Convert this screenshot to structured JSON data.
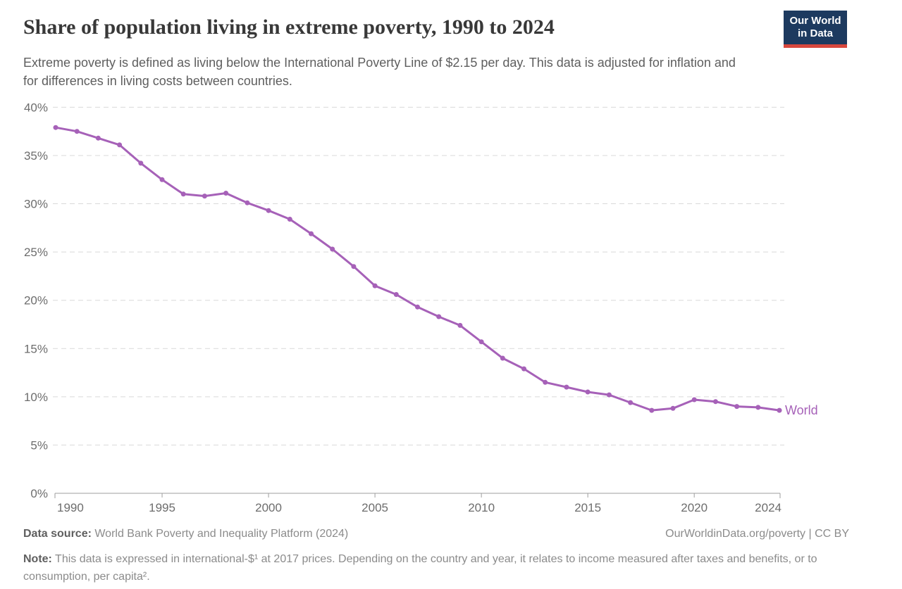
{
  "header": {
    "title": "Share of population living in extreme poverty, 1990 to 2024",
    "subtitle": "Extreme poverty is defined as living below the International Poverty Line of $2.15 per day. This data is adjusted for inflation and for differences in living costs between countries.",
    "logo": {
      "line1": "Our World",
      "line2": "in Data",
      "bg_color": "#1d3a5f",
      "accent_color": "#d8473d"
    }
  },
  "chart_data": {
    "type": "line",
    "title": "Share of population living in extreme poverty, 1990 to 2024",
    "xlabel": "",
    "ylabel": "",
    "xlim": [
      1990,
      2024
    ],
    "ylim": [
      0,
      40
    ],
    "grid": "horizontal-dashed",
    "legend_position": "end-of-line",
    "x_ticks": [
      1990,
      1995,
      2000,
      2005,
      2010,
      2015,
      2020,
      2024
    ],
    "y_ticks": [
      {
        "value": 0,
        "label": "0%"
      },
      {
        "value": 5,
        "label": "5%"
      },
      {
        "value": 10,
        "label": "10%"
      },
      {
        "value": 15,
        "label": "15%"
      },
      {
        "value": 20,
        "label": "20%"
      },
      {
        "value": 25,
        "label": "25%"
      },
      {
        "value": 30,
        "label": "30%"
      },
      {
        "value": 35,
        "label": "35%"
      },
      {
        "value": 40,
        "label": "40%"
      }
    ],
    "series": [
      {
        "name": "World",
        "color": "#a661b8",
        "x": [
          1990,
          1991,
          1992,
          1993,
          1994,
          1995,
          1996,
          1997,
          1998,
          1999,
          2000,
          2001,
          2002,
          2003,
          2004,
          2005,
          2006,
          2007,
          2008,
          2009,
          2010,
          2011,
          2012,
          2013,
          2014,
          2015,
          2016,
          2017,
          2018,
          2019,
          2020,
          2021,
          2022,
          2023,
          2024
        ],
        "values": [
          37.9,
          37.5,
          36.8,
          36.1,
          34.2,
          32.5,
          31.0,
          30.8,
          31.1,
          30.1,
          29.3,
          28.4,
          26.9,
          25.3,
          23.5,
          21.5,
          20.6,
          19.3,
          18.3,
          17.4,
          15.7,
          14.0,
          12.9,
          11.5,
          11.0,
          10.5,
          10.2,
          9.4,
          8.6,
          8.8,
          9.7,
          9.5,
          9.0,
          8.9,
          8.6
        ]
      }
    ],
    "style": {
      "grid_color": "#d9d9d9",
      "axis_color": "#9e9e9e",
      "tick_label_color": "#6d6d6d"
    }
  },
  "footer": {
    "datasource_label": "Data source:",
    "datasource_text": " World Bank Poverty and Inequality Platform (2024)",
    "attribution": "OurWorldinData.org/poverty | CC BY",
    "note_label": "Note:",
    "note_text": " This data is expressed in international-$¹ at 2017 prices. Depending on the country and year, it relates to income measured after taxes and benefits, or to consumption, per capita²."
  }
}
